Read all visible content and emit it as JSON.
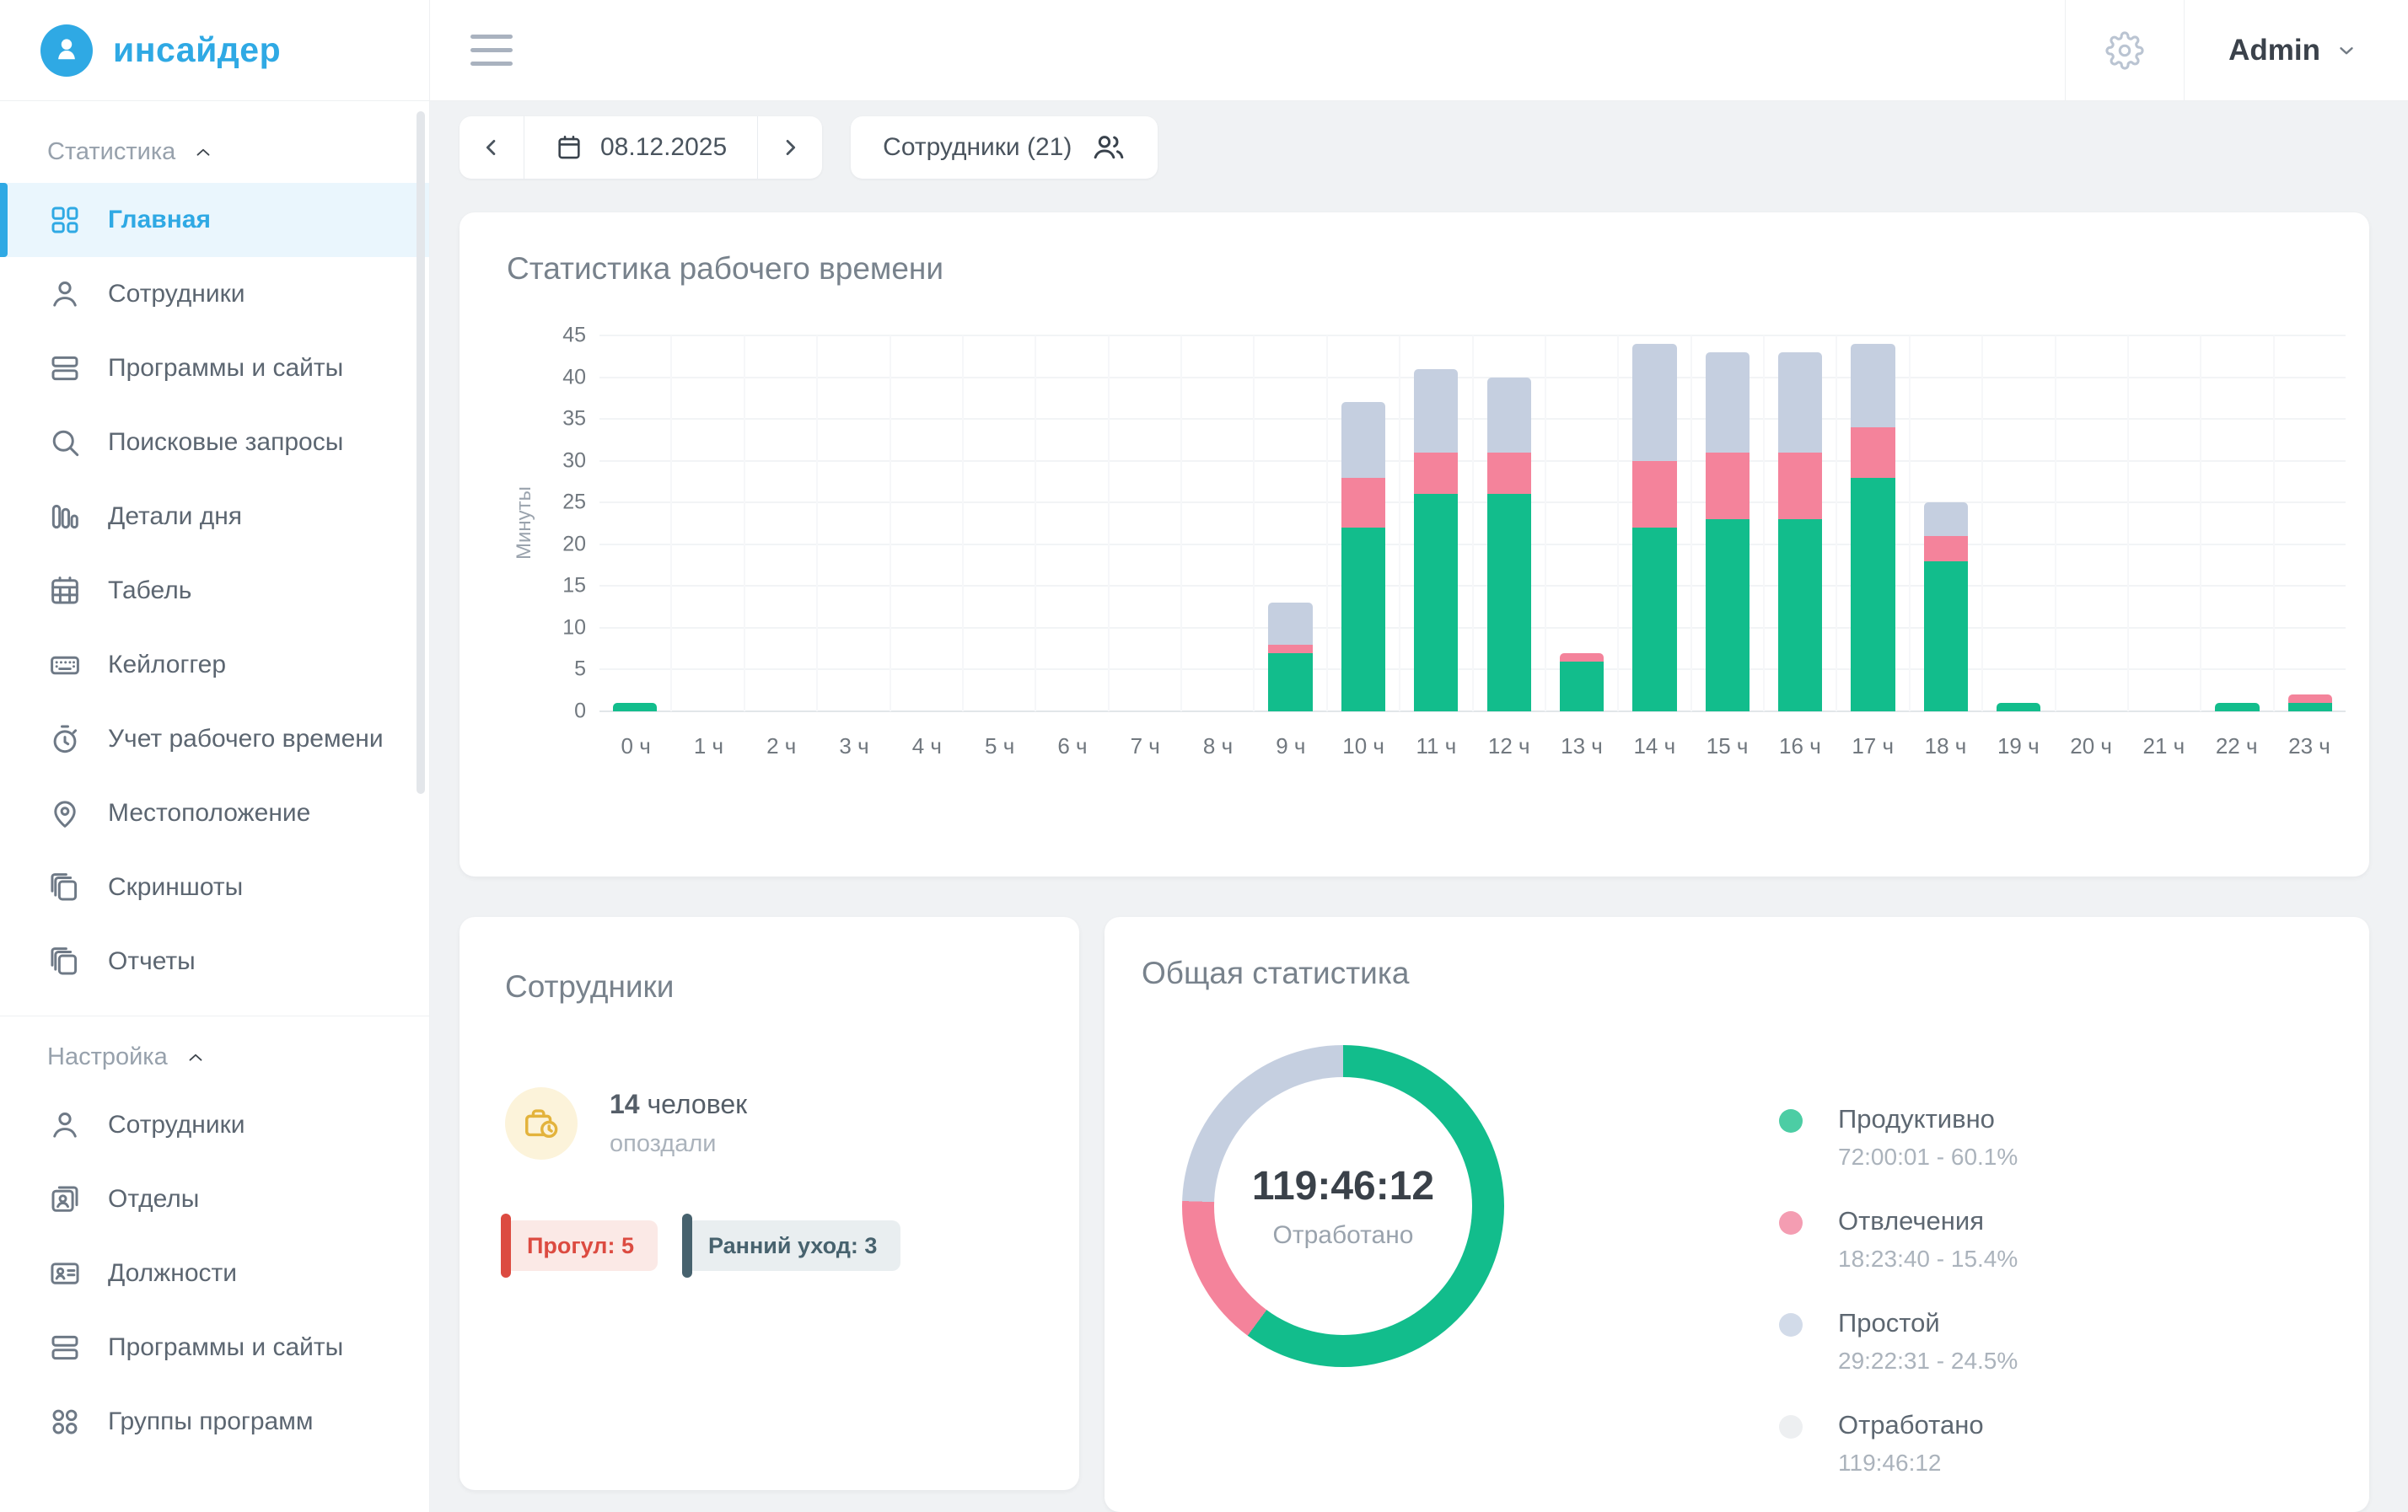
{
  "colors": {
    "accent": "#2FA9E4",
    "green": "#12BD8C",
    "pink": "#F4839B",
    "gray_blue": "#C5CFE0",
    "page_bg": "#F0F2F4"
  },
  "sidebar": {
    "logo_text": "инсайдер",
    "sections": [
      {
        "label": "Статистика",
        "items": [
          {
            "key": "home",
            "label": "Главная",
            "icon": "dashboard-icon",
            "active": true
          },
          {
            "key": "employees",
            "label": "Сотрудники",
            "icon": "user-icon",
            "active": false
          },
          {
            "key": "programs-sites",
            "label": "Программы и сайты",
            "icon": "rows-icon",
            "active": false
          },
          {
            "key": "search-queries",
            "label": "Поисковые запросы",
            "icon": "search-icon",
            "active": false
          },
          {
            "key": "day-details",
            "label": "Детали дня",
            "icon": "bars-icon",
            "active": false
          },
          {
            "key": "timesheet",
            "label": "Табель",
            "icon": "calendar-grid-icon",
            "active": false
          },
          {
            "key": "keylogger",
            "label": "Кейлоггер",
            "icon": "keyboard-icon",
            "active": false
          },
          {
            "key": "work-time",
            "label": "Учет рабочего времени",
            "icon": "stopwatch-icon",
            "active": false
          },
          {
            "key": "location",
            "label": "Местоположение",
            "icon": "map-pin-icon",
            "active": false
          },
          {
            "key": "screenshots",
            "label": "Скриншоты",
            "icon": "layers-icon",
            "active": false
          },
          {
            "key": "reports",
            "label": "Отчеты",
            "icon": "layers-icon",
            "active": false
          }
        ]
      },
      {
        "label": "Настройка",
        "items": [
          {
            "key": "employees-settings",
            "label": "Сотрудники",
            "icon": "user-icon",
            "active": false
          },
          {
            "key": "departments",
            "label": "Отделы",
            "icon": "badge-person-icon",
            "active": false
          },
          {
            "key": "positions",
            "label": "Должности",
            "icon": "id-card-icon",
            "active": false
          },
          {
            "key": "programs-sites-settings",
            "label": "Программы и сайты",
            "icon": "rows-icon",
            "active": false
          },
          {
            "key": "program-groups",
            "label": "Группы программ",
            "icon": "four-circles-icon",
            "active": false
          }
        ]
      }
    ]
  },
  "topbar": {
    "admin_label": "Admin"
  },
  "controls": {
    "date": "08.12.2025",
    "employees_button": "Сотрудники (21)"
  },
  "chart_card": {
    "title": "Статистика рабочего времени"
  },
  "employees_card": {
    "title": "Сотрудники",
    "count": "14",
    "count_suffix": " человек",
    "subtitle": "опоздали",
    "badges": [
      {
        "label": "Прогул: 5",
        "text_color": "#DC4B41",
        "bg": "#FBE9E6",
        "bar": "#DC4B41"
      },
      {
        "label": "Ранний уход: 3",
        "text_color": "#47626E",
        "bg": "#E9EEF0",
        "bar": "#47626E"
      }
    ]
  },
  "stats_card": {
    "title": "Общая статистика"
  },
  "chart_data": [
    {
      "type": "bar",
      "stacked": true,
      "title": "Статистика рабочего времени",
      "xlabel": "",
      "ylabel": "Минуты",
      "ylim": [
        0,
        45
      ],
      "ytick_step": 5,
      "grid": true,
      "categories": [
        "0 ч",
        "1 ч",
        "2 ч",
        "3 ч",
        "4 ч",
        "5 ч",
        "6 ч",
        "7 ч",
        "8 ч",
        "9 ч",
        "10 ч",
        "11 ч",
        "12 ч",
        "13 ч",
        "14 ч",
        "15 ч",
        "16 ч",
        "17 ч",
        "18 ч",
        "19 ч",
        "20 ч",
        "21 ч",
        "22 ч",
        "23 ч"
      ],
      "series": [
        {
          "name": "Продуктивно",
          "color": "#12BD8C",
          "values": [
            1,
            0,
            0,
            0,
            0,
            0,
            0,
            0,
            0,
            7,
            22,
            26,
            26,
            6,
            22,
            23,
            23,
            28,
            18,
            1,
            0,
            0,
            1,
            1
          ]
        },
        {
          "name": "Отвлечения",
          "color": "#F4839B",
          "values": [
            0,
            0,
            0,
            0,
            0,
            0,
            0,
            0,
            0,
            1,
            6,
            5,
            5,
            1,
            8,
            8,
            8,
            6,
            3,
            0,
            0,
            0,
            0,
            1
          ]
        },
        {
          "name": "Простой",
          "color": "#C5CFE0",
          "values": [
            0,
            0,
            0,
            0,
            0,
            0,
            0,
            0,
            0,
            5,
            9,
            10,
            9,
            0,
            14,
            12,
            12,
            10,
            4,
            0,
            0,
            0,
            0,
            0
          ]
        }
      ]
    },
    {
      "type": "pie",
      "title": "Общая статистика",
      "center_value": "119:46:12",
      "center_label": "Отработано",
      "legend_position": "right",
      "slices": [
        {
          "label": "Продуктивно",
          "detail": "72:00:01 - 60.1%",
          "percent": 60.1,
          "color": "#12BD8C",
          "dot": "#4CCDA4"
        },
        {
          "label": "Отвлечения",
          "detail": "18:23:40 - 15.4%",
          "percent": 15.4,
          "color": "#F4839B",
          "dot": "#F49DB2"
        },
        {
          "label": "Простой",
          "detail": "29:22:31 - 24.5%",
          "percent": 24.5,
          "color": "#C5CFE0",
          "dot": "#D2DBE9"
        },
        {
          "label": "Отработано",
          "detail": "119:46:12",
          "percent": null,
          "color": "#EDEFF1",
          "dot": "#EDEFF1"
        }
      ]
    }
  ]
}
